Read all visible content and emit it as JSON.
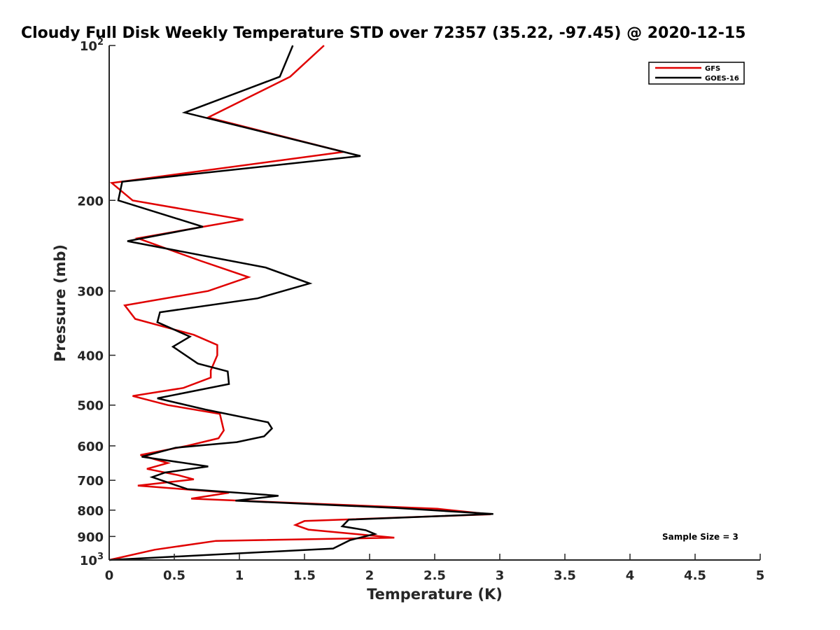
{
  "chart_data": {
    "type": "line",
    "title": "Cloudy Full Disk Weekly Temperature STD over 72357 (35.22, -97.45) @ 2020-12-15",
    "xlabel": "Temperature (K)",
    "ylabel": "Pressure (mb)",
    "xlim": [
      0,
      5
    ],
    "ylim": [
      100,
      1000
    ],
    "y_scale": "log",
    "y_reversed": true,
    "x_ticks": [
      "0",
      "0.5",
      "1",
      "1.5",
      "2",
      "2.5",
      "3",
      "3.5",
      "4",
      "4.5",
      "5"
    ],
    "y_ticks": [
      {
        "value": 100,
        "base": "10",
        "exp": "2"
      },
      {
        "value": 200,
        "label": "200"
      },
      {
        "value": 300,
        "label": "300"
      },
      {
        "value": 400,
        "label": "400"
      },
      {
        "value": 500,
        "label": "500"
      },
      {
        "value": 600,
        "label": "600"
      },
      {
        "value": 700,
        "label": "700"
      },
      {
        "value": 800,
        "label": "800"
      },
      {
        "value": 900,
        "label": "900"
      },
      {
        "value": 1000,
        "base": "10",
        "exp": "3"
      }
    ],
    "grid": false,
    "legend_position": "top-right",
    "annotation": "Sample Size = 3",
    "series": [
      {
        "name": "GFS",
        "color": "#e00000",
        "points": [
          [
            1.65,
            100
          ],
          [
            1.39,
            115
          ],
          [
            0.76,
            138
          ],
          [
            1.8,
            161
          ],
          [
            0.02,
            185
          ],
          [
            0.18,
            200
          ],
          [
            1.03,
            218
          ],
          [
            0.22,
            237
          ],
          [
            0.7,
            262
          ],
          [
            1.07,
            282
          ],
          [
            0.76,
            300
          ],
          [
            0.12,
            320
          ],
          [
            0.2,
            340
          ],
          [
            0.65,
            365
          ],
          [
            0.83,
            382
          ],
          [
            0.83,
            400
          ],
          [
            0.78,
            428
          ],
          [
            0.78,
            442
          ],
          [
            0.57,
            463
          ],
          [
            0.18,
            480
          ],
          [
            0.45,
            500
          ],
          [
            0.85,
            520
          ],
          [
            0.88,
            560
          ],
          [
            0.84,
            580
          ],
          [
            0.6,
            600
          ],
          [
            0.24,
            625
          ],
          [
            0.45,
            648
          ],
          [
            0.29,
            665
          ],
          [
            0.53,
            684
          ],
          [
            0.65,
            697
          ],
          [
            0.22,
            717
          ],
          [
            0.92,
            740
          ],
          [
            0.63,
            760
          ],
          [
            2.52,
            795
          ],
          [
            2.93,
            815
          ],
          [
            1.5,
            840
          ],
          [
            1.43,
            855
          ],
          [
            1.53,
            873
          ],
          [
            2.19,
            905
          ],
          [
            0.82,
            918
          ],
          [
            0.35,
            955
          ],
          [
            0.0,
            1000
          ]
        ]
      },
      {
        "name": "GOES-16",
        "color": "#000000",
        "points": [
          [
            1.41,
            100
          ],
          [
            1.31,
            115
          ],
          [
            0.58,
            135
          ],
          [
            1.93,
            164
          ],
          [
            0.1,
            184
          ],
          [
            0.07,
            200
          ],
          [
            0.72,
            225
          ],
          [
            0.14,
            240
          ],
          [
            1.2,
            270
          ],
          [
            1.54,
            290
          ],
          [
            1.14,
            310
          ],
          [
            0.39,
            330
          ],
          [
            0.37,
            345
          ],
          [
            0.62,
            368
          ],
          [
            0.49,
            385
          ],
          [
            0.68,
            415
          ],
          [
            0.91,
            430
          ],
          [
            0.92,
            455
          ],
          [
            0.37,
            485
          ],
          [
            0.74,
            510
          ],
          [
            1.22,
            540
          ],
          [
            1.25,
            555
          ],
          [
            1.19,
            575
          ],
          [
            0.98,
            590
          ],
          [
            0.51,
            605
          ],
          [
            0.25,
            630
          ],
          [
            0.76,
            658
          ],
          [
            0.43,
            676
          ],
          [
            0.33,
            690
          ],
          [
            0.6,
            728
          ],
          [
            1.3,
            750
          ],
          [
            0.97,
            767
          ],
          [
            2.2,
            792
          ],
          [
            2.95,
            814
          ],
          [
            1.84,
            835
          ],
          [
            1.79,
            860
          ],
          [
            1.97,
            875
          ],
          [
            2.04,
            890
          ],
          [
            1.85,
            915
          ],
          [
            1.72,
            950
          ],
          [
            0.0,
            1000
          ]
        ]
      }
    ]
  }
}
